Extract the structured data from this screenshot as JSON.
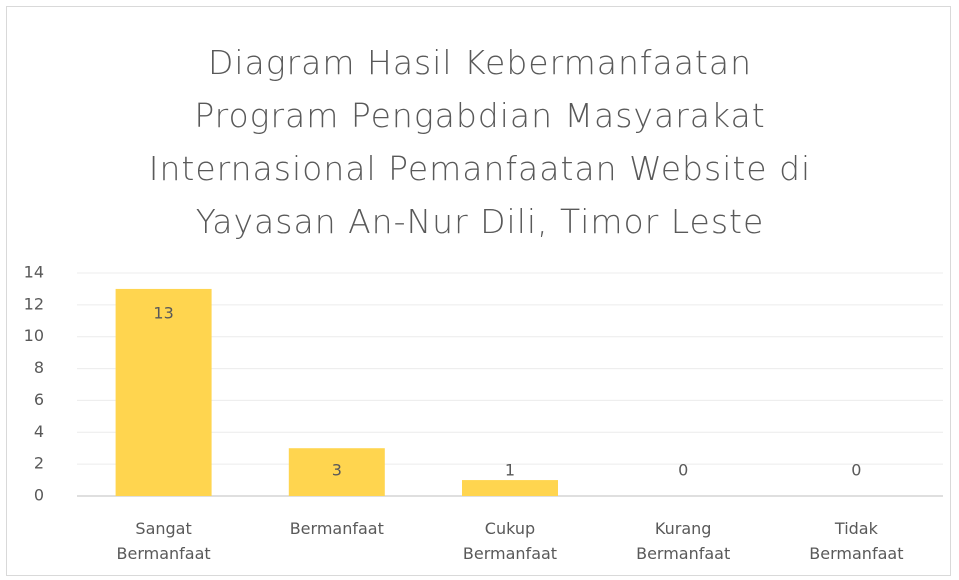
{
  "chart_data": {
    "type": "bar",
    "title": "Diagram Hasil Kebermanfaatan Program Pengabdian Masyarakat Internasional Pemanfaatan Website di Yayasan An-Nur Dili, Timor Leste",
    "categories": [
      "Sangat Bermanfaat",
      "Bermanfaat",
      "Cukup Bermanfaat",
      "Kurang Bermanfaat",
      "Tidak Bermanfaat"
    ],
    "values": [
      13,
      3,
      1,
      0,
      0
    ],
    "color": "#ffd54f",
    "ylim": [
      0,
      14
    ],
    "yticks": [
      0,
      2,
      4,
      6,
      8,
      10,
      12,
      14
    ],
    "grid": true
  }
}
